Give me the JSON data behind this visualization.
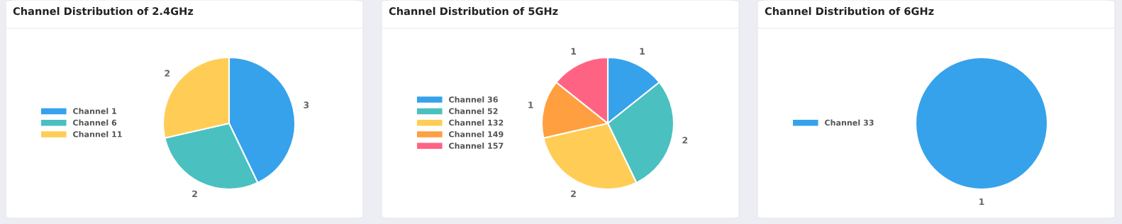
{
  "chart_data": [
    {
      "type": "pie",
      "title": "Channel Distribution of 2.4GHz",
      "categories": [
        "Channel 1",
        "Channel 6",
        "Channel 11"
      ],
      "values": [
        3,
        2,
        2
      ],
      "colors": [
        "#36a2eb",
        "#4bc0c0",
        "#ffcd56"
      ],
      "data_labels": true,
      "legend": "left"
    },
    {
      "type": "pie",
      "title": "Channel Distribution of 5GHz",
      "categories": [
        "Channel 36",
        "Channel 52",
        "Channel 132",
        "Channel 149",
        "Channel 157"
      ],
      "values": [
        1,
        2,
        2,
        1,
        1
      ],
      "colors": [
        "#36a2eb",
        "#4bc0c0",
        "#ffcd56",
        "#ff9f40",
        "#ff6384"
      ],
      "data_labels": true,
      "legend": "left"
    },
    {
      "type": "pie",
      "title": "Channel Distribution of 6GHz",
      "categories": [
        "Channel 33"
      ],
      "values": [
        1
      ],
      "colors": [
        "#36a2eb"
      ],
      "data_labels": true,
      "legend": "left"
    }
  ]
}
